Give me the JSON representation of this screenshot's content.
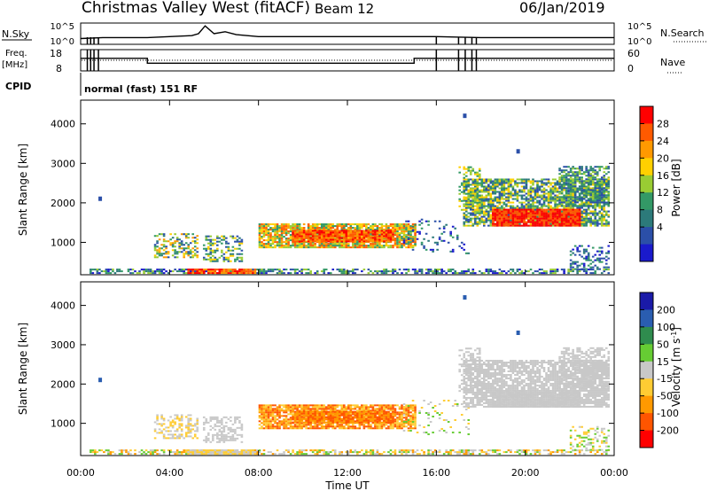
{
  "header": {
    "title": "Christmas Valley West (fitACF)",
    "beam": "Beam 12",
    "date": "06/Jan/2019"
  },
  "panel_labels": {
    "nsky": "N.Sky",
    "nsearch": "N.Search",
    "freq": "Freq.",
    "freq_unit": "[MHz]",
    "nave": "Nave",
    "cpid": "CPID",
    "cpid_text": "normal (fast) 151 RF"
  },
  "noise_ticks": [
    "10^5",
    "10^0"
  ],
  "freq_ticks": [
    "18",
    "8"
  ],
  "nave_ticks": [
    "60",
    "0"
  ],
  "chart_data": [
    {
      "type": "line",
      "name": "noise",
      "x_unit": "hours UT",
      "x": [
        0,
        1,
        2,
        3,
        4,
        5,
        5.3,
        5.6,
        6,
        6.5,
        7,
        8,
        10,
        12,
        14,
        16,
        18,
        20,
        22,
        24
      ],
      "y": [
        0.25,
        0.3,
        0.3,
        0.3,
        0.35,
        0.4,
        0.5,
        0.9,
        0.5,
        0.6,
        0.45,
        0.35,
        0.35,
        0.35,
        0.35,
        0.35,
        0.3,
        0.3,
        0.3,
        0.3
      ],
      "ylim": [
        0,
        1
      ]
    },
    {
      "type": "line",
      "name": "frequency",
      "x_unit": "hours UT",
      "x": [
        0,
        3,
        3,
        15,
        15,
        24
      ],
      "y": [
        14,
        14,
        11.5,
        11.5,
        14,
        14
      ],
      "ylim": [
        8,
        18
      ]
    },
    {
      "type": "heatmap",
      "title": "Power",
      "ylabel": "Slant Range [km]",
      "xlabel": "Time UT",
      "xlim": [
        0,
        24
      ],
      "ylim": [
        180,
        4600
      ],
      "yticks": [
        1000,
        2000,
        3000,
        4000
      ],
      "colorbar": {
        "label": "Power [dB]",
        "ticks": [
          "28",
          "24",
          "20",
          "16",
          "12",
          "8",
          "4"
        ],
        "colors": [
          "#ff0000",
          "#ff5a00",
          "#ff9900",
          "#ffd000",
          "#99cc33",
          "#339966",
          "#2c7a7a",
          "#2b4fa8",
          "#1a1acc"
        ]
      }
    },
    {
      "type": "heatmap",
      "title": "Velocity",
      "ylabel": "Slant Range [km]",
      "xlabel": "Time UT",
      "xlim": [
        0,
        24
      ],
      "ylim": [
        180,
        4600
      ],
      "yticks": [
        1000,
        2000,
        3000,
        4000
      ],
      "colorbar": {
        "label": "Velocity [m s-1]",
        "ticks": [
          "200",
          "100",
          "50",
          "15",
          "-15",
          "-50",
          "-100",
          "-200"
        ],
        "colors": [
          "#1a1aa8",
          "#2a5db0",
          "#2f8c4e",
          "#66cc33",
          "#c8c8c8",
          "#ffcc33",
          "#ff9900",
          "#ff5500",
          "#ff0000"
        ]
      }
    }
  ],
  "x_ticks": [
    "00:00",
    "04:00",
    "08:00",
    "12:00",
    "16:00",
    "20:00",
    "00:00"
  ],
  "x_label": "Time UT",
  "y_label": "Slant Range [km]",
  "power_label": "Power [dB]",
  "velocity_label": "Velocity [m s"
}
